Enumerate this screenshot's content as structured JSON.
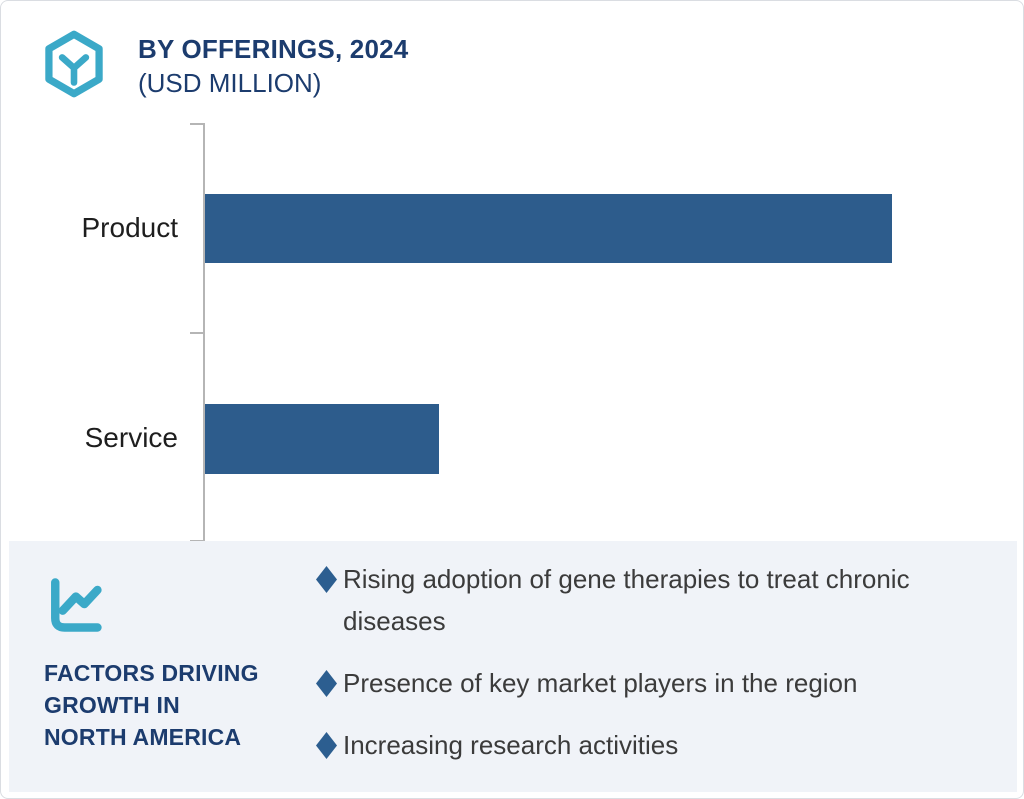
{
  "header": {
    "title": "BY OFFERINGS, 2024",
    "subtitle": "(USD MILLION)",
    "logo_icon": "hexagon-y-logo"
  },
  "chart_data": {
    "type": "bar",
    "orientation": "horizontal",
    "title": "BY OFFERINGS, 2024 (USD MILLION)",
    "categories": [
      "Product",
      "Service"
    ],
    "values": [
      100,
      34
    ],
    "value_note": "no numeric axis or data labels shown; values are relative percent of the longest bar",
    "xlabel": "",
    "ylabel": "",
    "grid": false,
    "legend": false,
    "bar_color": "#2d5c8c",
    "axis_color": "#b5b5b5"
  },
  "factors_panel": {
    "icon": "line-chart-icon",
    "heading_lines": [
      "FACTORS DRIVING",
      "GROWTH IN",
      "NORTH AMERICA"
    ],
    "heading_full": "FACTORS DRIVING GROWTH IN NORTH AMERICA",
    "bullets": [
      "Rising adoption of gene therapies to treat chronic diseases",
      "Presence of key market players in the region",
      "Increasing research activities"
    ],
    "background": "#f0f3f8",
    "bullet_marker_color": "#2c5e90"
  },
  "colors": {
    "accent_teal": "#3ba9c8",
    "navy_text": "#1c3c6e",
    "bar_blue": "#2d5c8c",
    "body_text": "#3b3b3b",
    "card_border": "#dadde2"
  }
}
